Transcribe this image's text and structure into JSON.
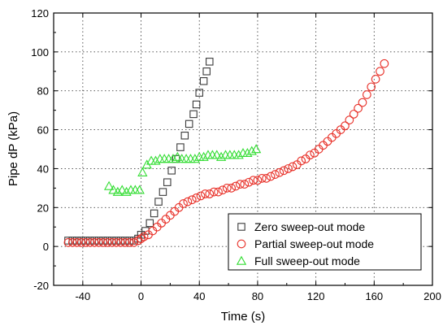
{
  "chart_data": {
    "type": "scatter",
    "title": "",
    "xlabel": "Time (s)",
    "ylabel": "Pipe dP (kPa)",
    "xlim": [
      -60,
      200
    ],
    "ylim": [
      -20,
      120
    ],
    "x_ticks": [
      -40,
      0,
      40,
      80,
      120,
      160,
      200
    ],
    "y_ticks": [
      -20,
      0,
      20,
      40,
      60,
      80,
      100,
      120
    ],
    "grid": true,
    "grid_style": "dotted",
    "legend_position": "bottom-right",
    "series": [
      {
        "name": "Zero sweep-out mode",
        "marker": "square",
        "color": "#3a3a3a",
        "points": [
          [
            -50,
            3
          ],
          [
            -47,
            3
          ],
          [
            -44,
            3
          ],
          [
            -41,
            3
          ],
          [
            -38,
            3
          ],
          [
            -35,
            3
          ],
          [
            -32,
            3
          ],
          [
            -29,
            3
          ],
          [
            -26,
            3
          ],
          [
            -23,
            3
          ],
          [
            -20,
            3
          ],
          [
            -17,
            3
          ],
          [
            -14,
            3
          ],
          [
            -11,
            3
          ],
          [
            -8,
            3
          ],
          [
            -5,
            3
          ],
          [
            -2,
            4
          ],
          [
            0,
            6
          ],
          [
            3,
            8
          ],
          [
            6,
            12
          ],
          [
            9,
            17
          ],
          [
            12,
            23
          ],
          [
            15,
            28
          ],
          [
            18,
            33
          ],
          [
            21,
            39
          ],
          [
            24,
            45
          ],
          [
            27,
            51
          ],
          [
            30,
            57
          ],
          [
            33,
            63
          ],
          [
            36,
            68
          ],
          [
            38,
            73
          ],
          [
            40,
            79
          ],
          [
            43,
            85
          ],
          [
            45,
            90
          ],
          [
            47,
            95
          ]
        ]
      },
      {
        "name": "Partial sweep-out mode",
        "marker": "circle",
        "color": "#e8322a",
        "points": [
          [
            -50,
            2
          ],
          [
            -47,
            2
          ],
          [
            -44,
            2
          ],
          [
            -41,
            2
          ],
          [
            -38,
            2
          ],
          [
            -35,
            2
          ],
          [
            -32,
            2
          ],
          [
            -29,
            2
          ],
          [
            -26,
            2
          ],
          [
            -23,
            2
          ],
          [
            -20,
            2
          ],
          [
            -17,
            2
          ],
          [
            -14,
            2
          ],
          [
            -11,
            2
          ],
          [
            -8,
            2
          ],
          [
            -5,
            2
          ],
          [
            -2,
            3
          ],
          [
            0,
            4
          ],
          [
            2,
            5
          ],
          [
            5,
            6
          ],
          [
            8,
            8
          ],
          [
            11,
            10
          ],
          [
            14,
            12
          ],
          [
            17,
            14
          ],
          [
            20,
            16
          ],
          [
            23,
            18
          ],
          [
            26,
            20
          ],
          [
            29,
            22
          ],
          [
            32,
            23
          ],
          [
            35,
            24
          ],
          [
            38,
            25
          ],
          [
            41,
            26
          ],
          [
            44,
            27
          ],
          [
            47,
            27
          ],
          [
            50,
            28
          ],
          [
            53,
            28
          ],
          [
            56,
            29
          ],
          [
            59,
            30
          ],
          [
            62,
            30
          ],
          [
            65,
            31
          ],
          [
            68,
            32
          ],
          [
            71,
            32
          ],
          [
            74,
            33
          ],
          [
            77,
            34
          ],
          [
            80,
            34
          ],
          [
            83,
            35
          ],
          [
            86,
            35
          ],
          [
            89,
            36
          ],
          [
            92,
            37
          ],
          [
            95,
            38
          ],
          [
            98,
            39
          ],
          [
            101,
            40
          ],
          [
            104,
            41
          ],
          [
            107,
            42
          ],
          [
            110,
            44
          ],
          [
            113,
            45
          ],
          [
            116,
            47
          ],
          [
            119,
            48
          ],
          [
            122,
            50
          ],
          [
            125,
            52
          ],
          [
            128,
            54
          ],
          [
            131,
            56
          ],
          [
            134,
            58
          ],
          [
            137,
            60
          ],
          [
            140,
            62
          ],
          [
            143,
            65
          ],
          [
            146,
            68
          ],
          [
            149,
            71
          ],
          [
            152,
            74
          ],
          [
            155,
            78
          ],
          [
            158,
            82
          ],
          [
            161,
            86
          ],
          [
            164,
            90
          ],
          [
            167,
            94
          ]
        ]
      },
      {
        "name": "Full sweep-out mode",
        "marker": "triangle",
        "color": "#33dd33",
        "points": [
          [
            -22,
            31
          ],
          [
            -19,
            29
          ],
          [
            -16,
            28
          ],
          [
            -13,
            29
          ],
          [
            -10,
            28
          ],
          [
            -7,
            29
          ],
          [
            -4,
            29
          ],
          [
            -1,
            29
          ],
          [
            1,
            38
          ],
          [
            4,
            42
          ],
          [
            7,
            44
          ],
          [
            10,
            44
          ],
          [
            13,
            45
          ],
          [
            16,
            45
          ],
          [
            19,
            45
          ],
          [
            22,
            45
          ],
          [
            25,
            46
          ],
          [
            28,
            45
          ],
          [
            31,
            45
          ],
          [
            34,
            45
          ],
          [
            37,
            45
          ],
          [
            40,
            46
          ],
          [
            43,
            46
          ],
          [
            46,
            47
          ],
          [
            49,
            47
          ],
          [
            52,
            47
          ],
          [
            55,
            46
          ],
          [
            58,
            47
          ],
          [
            61,
            47
          ],
          [
            64,
            47
          ],
          [
            67,
            47
          ],
          [
            70,
            48
          ],
          [
            73,
            48
          ],
          [
            76,
            49
          ],
          [
            79,
            50
          ]
        ]
      }
    ]
  }
}
